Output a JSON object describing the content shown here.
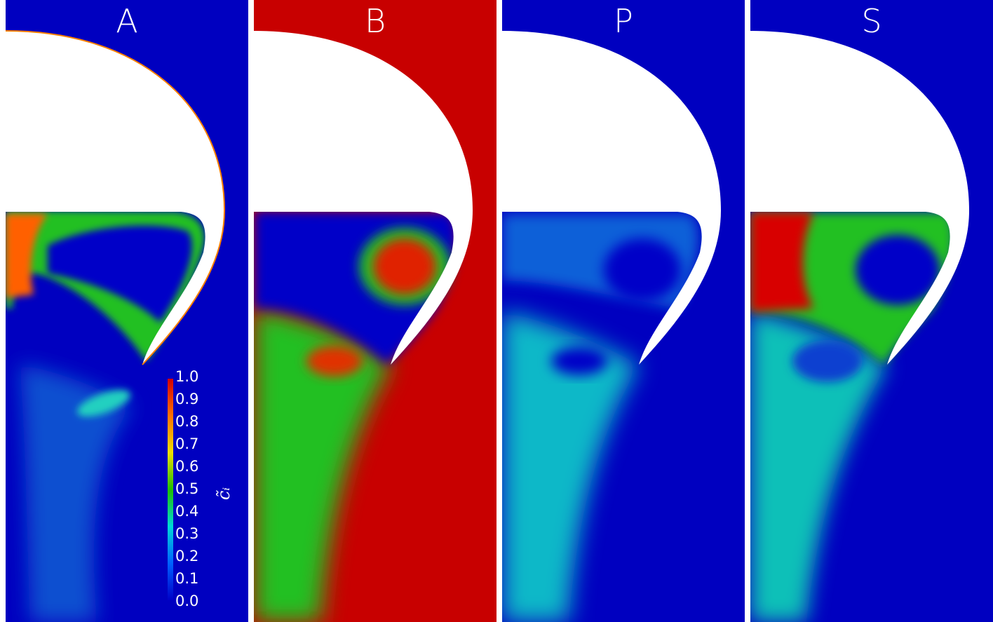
{
  "panels": [
    {
      "title": "A"
    },
    {
      "title": "B"
    },
    {
      "title": "P"
    },
    {
      "title": "S"
    }
  ],
  "colorbar": {
    "label": "c̃ᵢ",
    "ticks": [
      "1.0",
      "0.9",
      "0.8",
      "0.7",
      "0.6",
      "0.5",
      "0.4",
      "0.3",
      "0.2",
      "0.1",
      "0.0"
    ],
    "colormap": [
      "#0000c8",
      "#0060ff",
      "#00d8d8",
      "#20c000",
      "#f0e000",
      "#ff7000",
      "#d00000"
    ]
  }
}
